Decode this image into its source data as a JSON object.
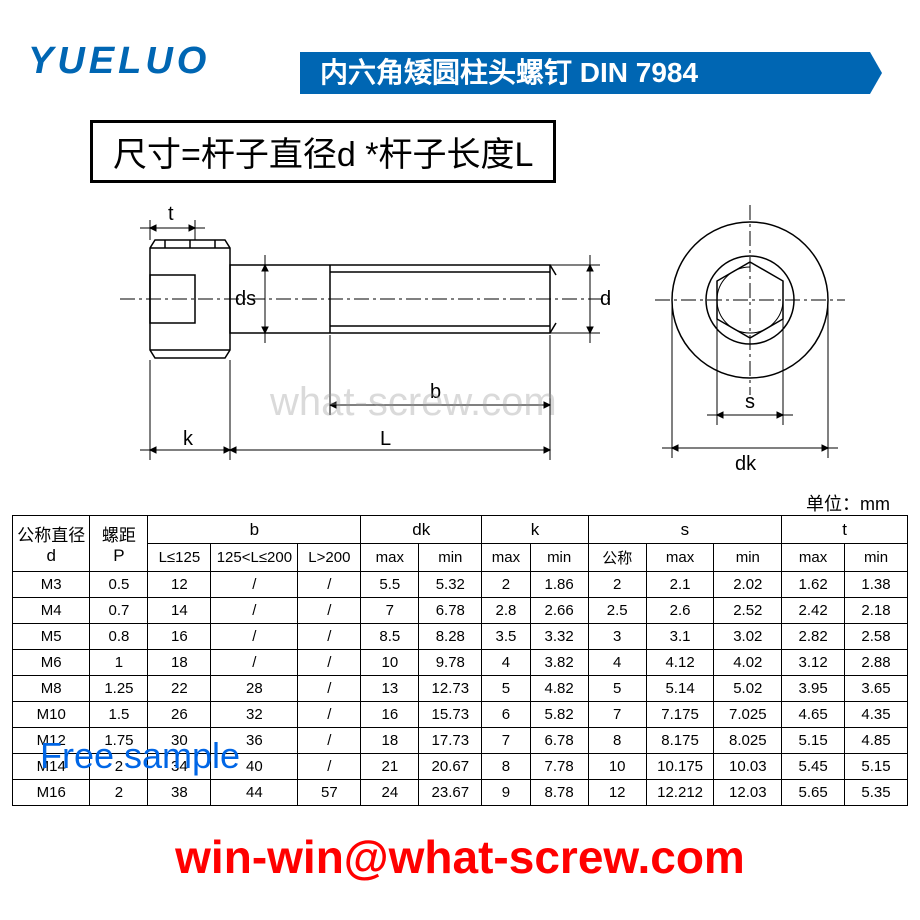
{
  "brand": "YUELUO",
  "title": "内六角矮圆柱头螺钉 DIN 7984",
  "formula": "尺寸=杆子直径d *杆子长度L",
  "watermark_center": "what-screw.com",
  "unit_label": "单位：mm",
  "free_sample_text": "Free sample",
  "email": "win-win@what-screw.com",
  "diagram": {
    "labels": {
      "t": "t",
      "ds": "ds",
      "k": "k",
      "L": "L",
      "b": "b",
      "d": "d",
      "s": "s",
      "dk": "dk"
    },
    "line_color": "#000000",
    "dash_color": "#000000"
  },
  "table": {
    "headers_top": [
      "公称直径 d",
      "螺距 P",
      "b",
      "dk",
      "k",
      "s",
      "t"
    ],
    "headers_sub": {
      "b": [
        "L≤125",
        "125<L≤200",
        "L>200"
      ],
      "dk": [
        "max",
        "min"
      ],
      "k": [
        "max",
        "min"
      ],
      "s": [
        "公称",
        "max",
        "min"
      ],
      "t": [
        "max",
        "min"
      ]
    },
    "rows": [
      [
        "M3",
        "0.5",
        "12",
        "/",
        "/",
        "5.5",
        "5.32",
        "2",
        "1.86",
        "2",
        "2.1",
        "2.02",
        "1.62",
        "1.38"
      ],
      [
        "M4",
        "0.7",
        "14",
        "/",
        "/",
        "7",
        "6.78",
        "2.8",
        "2.66",
        "2.5",
        "2.6",
        "2.52",
        "2.42",
        "2.18"
      ],
      [
        "M5",
        "0.8",
        "16",
        "/",
        "/",
        "8.5",
        "8.28",
        "3.5",
        "3.32",
        "3",
        "3.1",
        "3.02",
        "2.82",
        "2.58"
      ],
      [
        "M6",
        "1",
        "18",
        "/",
        "/",
        "10",
        "9.78",
        "4",
        "3.82",
        "4",
        "4.12",
        "4.02",
        "3.12",
        "2.88"
      ],
      [
        "M8",
        "1.25",
        "22",
        "28",
        "/",
        "13",
        "12.73",
        "5",
        "4.82",
        "5",
        "5.14",
        "5.02",
        "3.95",
        "3.65"
      ],
      [
        "M10",
        "1.5",
        "26",
        "32",
        "/",
        "16",
        "15.73",
        "6",
        "5.82",
        "7",
        "7.175",
        "7.025",
        "4.65",
        "4.35"
      ],
      [
        "M12",
        "1.75",
        "30",
        "36",
        "/",
        "18",
        "17.73",
        "7",
        "6.78",
        "8",
        "8.175",
        "8.025",
        "5.15",
        "4.85"
      ],
      [
        "M14",
        "2",
        "34",
        "40",
        "/",
        "21",
        "20.67",
        "8",
        "7.78",
        "10",
        "10.175",
        "10.03",
        "5.45",
        "5.15"
      ],
      [
        "M16",
        "2",
        "38",
        "44",
        "57",
        "24",
        "23.67",
        "9",
        "8.78",
        "12",
        "12.212",
        "12.03",
        "5.65",
        "5.35"
      ]
    ],
    "col_widths_pct": [
      8,
      6,
      6.5,
      9,
      6.5,
      6,
      6.5,
      5,
      6,
      6,
      7,
      7,
      6.5,
      6.5
    ]
  },
  "colors": {
    "brand_blue": "#0066b3",
    "link_blue": "#0066e6",
    "red": "#ff0000",
    "black": "#000000",
    "white": "#ffffff"
  }
}
